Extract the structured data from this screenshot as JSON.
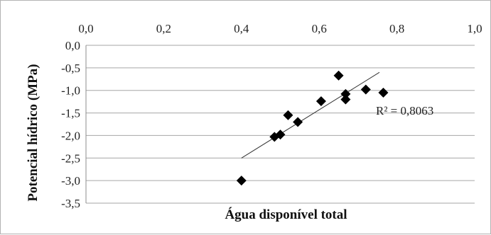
{
  "chart_data": {
    "type": "scatter",
    "title": "",
    "xlabel": "Água disponível total",
    "ylabel": "Potencial hídrico (MPa)",
    "xlim": [
      0.0,
      1.0
    ],
    "ylim": [
      -3.5,
      0.0
    ],
    "x_axis_position": "top",
    "x_ticks": [
      "0,0",
      "0,2",
      "0,4",
      "0,6",
      "0,8",
      "1,0"
    ],
    "x_tick_values": [
      0.0,
      0.2,
      0.4,
      0.6,
      0.8,
      1.0
    ],
    "y_ticks": [
      "0,0",
      "-0,5",
      "-1,0",
      "-1,5",
      "-2,0",
      "-2,5",
      "-3,0",
      "-3,5"
    ],
    "y_tick_values": [
      0.0,
      -0.5,
      -1.0,
      -1.5,
      -2.0,
      -2.5,
      -3.0,
      -3.5
    ],
    "grid": "horizontal",
    "series": [
      {
        "marker": "diamond",
        "color": "#000000",
        "points": [
          {
            "x": 0.4,
            "y": -3.0
          },
          {
            "x": 0.485,
            "y": -2.03
          },
          {
            "x": 0.5,
            "y": -1.98
          },
          {
            "x": 0.52,
            "y": -1.55
          },
          {
            "x": 0.545,
            "y": -1.7
          },
          {
            "x": 0.605,
            "y": -1.24
          },
          {
            "x": 0.65,
            "y": -0.67
          },
          {
            "x": 0.668,
            "y": -1.08
          },
          {
            "x": 0.668,
            "y": -1.2
          },
          {
            "x": 0.72,
            "y": -0.98
          },
          {
            "x": 0.765,
            "y": -1.05
          }
        ]
      }
    ],
    "trendline": {
      "type": "linear",
      "x_start": 0.4,
      "y_start": -2.5,
      "x_end": 0.755,
      "y_end": -0.6,
      "color": "#333333",
      "annotation": "R² = 0,8063"
    }
  }
}
